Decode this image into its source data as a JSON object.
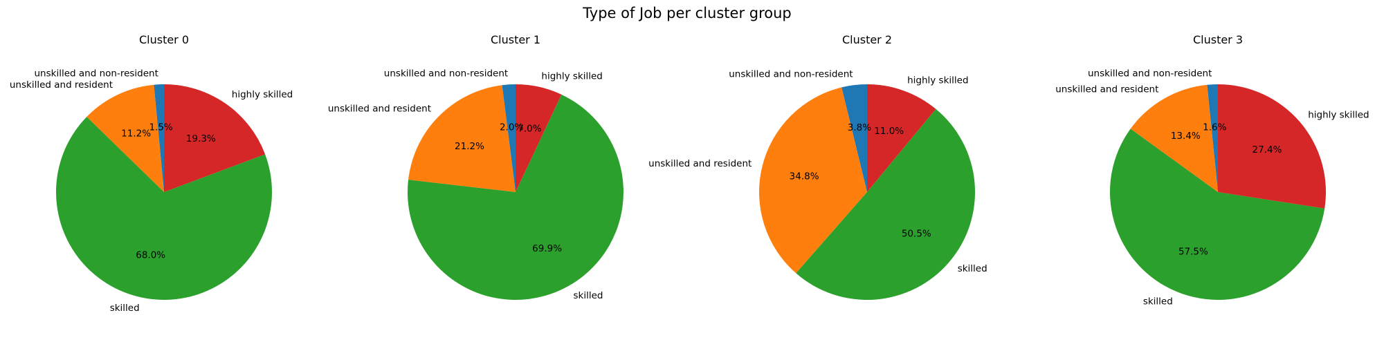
{
  "chart_data": {
    "title": "Type of Job per cluster group",
    "type": "pie",
    "categories": [
      "unskilled and non-resident",
      "unskilled and resident",
      "skilled",
      "highly skilled"
    ],
    "colors": [
      "#1f77b4",
      "#ff7f0e",
      "#2ca02c",
      "#d62728"
    ],
    "start_angle_deg": 90,
    "direction": "counterclockwise",
    "charts": [
      {
        "title": "Cluster 0",
        "values": [
          1.5,
          11.2,
          68.0,
          19.3
        ],
        "labels": [
          "1.5%",
          "11.2%",
          "68.0%",
          "19.3%"
        ]
      },
      {
        "title": "Cluster 1",
        "values": [
          2.0,
          21.2,
          69.9,
          7.0
        ],
        "labels": [
          "2.0%",
          "21.2%",
          "69.9%",
          "7.0%"
        ]
      },
      {
        "title": "Cluster 2",
        "values": [
          3.8,
          34.8,
          50.5,
          11.0
        ],
        "labels": [
          "3.8%",
          "34.8%",
          "50.5%",
          "11.0%"
        ]
      },
      {
        "title": "Cluster 3",
        "values": [
          1.6,
          13.4,
          57.5,
          27.4
        ],
        "labels": [
          "1.6%",
          "13.4%",
          "57.5%",
          "27.4%"
        ]
      }
    ]
  }
}
